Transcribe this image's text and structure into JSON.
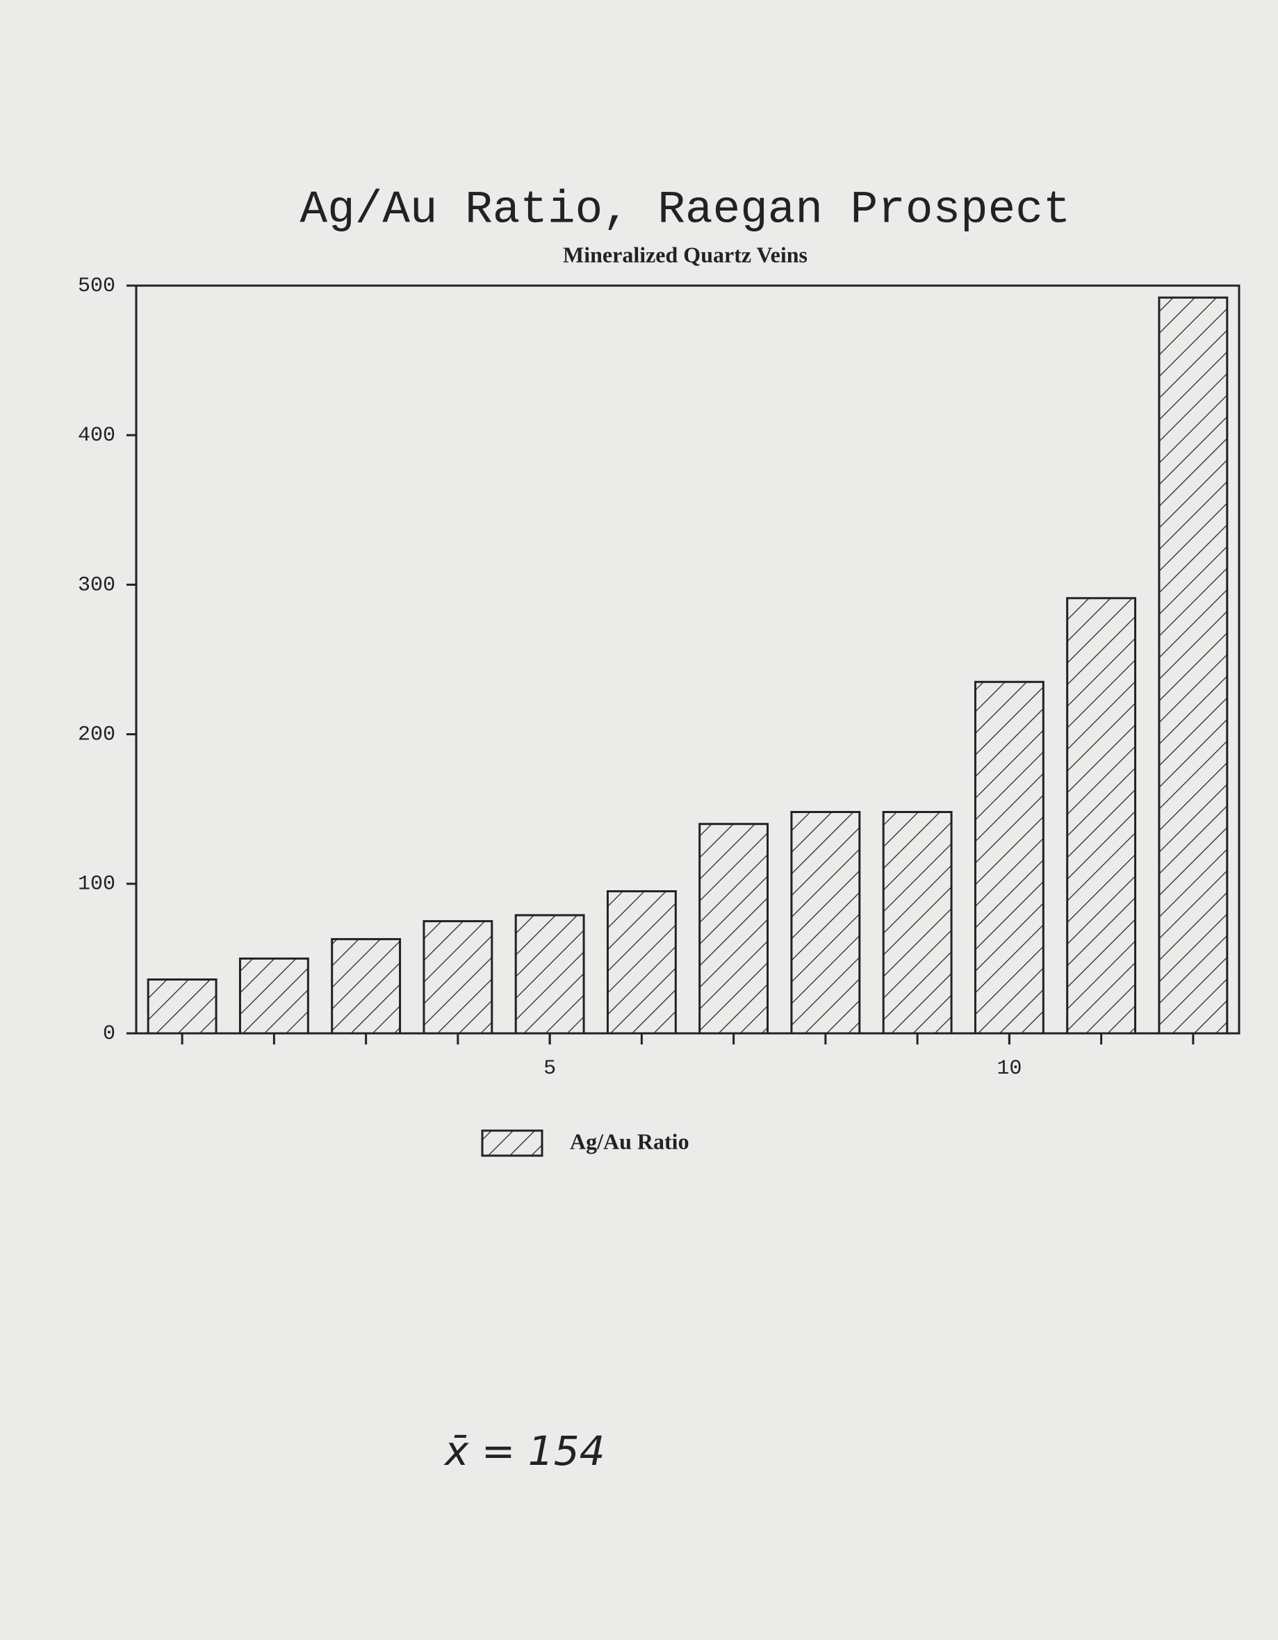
{
  "chart_data": {
    "type": "bar",
    "title": "Ag/Au Ratio, Raegan Prospect",
    "subtitle": "Mineralized Quartz Veins",
    "x": [
      1,
      2,
      3,
      4,
      5,
      6,
      7,
      8,
      9,
      10,
      11,
      12
    ],
    "series": [
      {
        "name": "Ag/Au Ratio",
        "color": "#222222",
        "values": [
          36,
          50,
          63,
          75,
          79,
          95,
          140,
          148,
          148,
          235,
          291,
          492
        ]
      }
    ],
    "xlim": [
      0.5,
      12.5
    ],
    "xticks": [
      5,
      10
    ],
    "ylim": [
      0,
      500
    ],
    "yticks": [
      0,
      100,
      200,
      300,
      400,
      500
    ],
    "annotation": "x̄ = 154"
  }
}
